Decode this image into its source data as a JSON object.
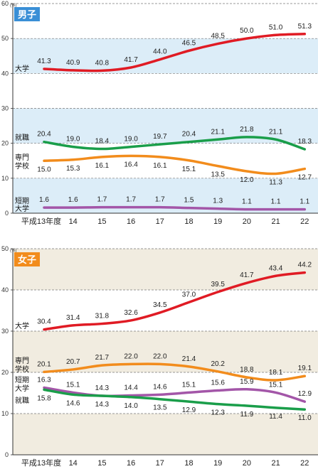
{
  "chart_data": [
    {
      "type": "line",
      "title": "男子",
      "title_color": "#3a8fd6",
      "band_color": "#dcedf8",
      "unit": "(%)",
      "ylim": [
        0,
        60
      ],
      "yticks": [
        0,
        10,
        20,
        30,
        40,
        50,
        60
      ],
      "grid": true,
      "x": [
        "平成13年度",
        "14",
        "15",
        "16",
        "17",
        "18",
        "19",
        "20",
        "21",
        "22"
      ],
      "series": [
        {
          "name": "大学",
          "label_lines": [
            "大学"
          ],
          "color": "#e01b24",
          "label_value": 41.3,
          "values": [
            41.3,
            40.9,
            40.8,
            41.7,
            44.0,
            46.5,
            48.5,
            50.0,
            51.0,
            51.3
          ]
        },
        {
          "name": "就職",
          "label_lines": [
            "就職"
          ],
          "color": "#1a9e4a",
          "label_value": 20.4,
          "values": [
            20.4,
            19.0,
            18.4,
            19.0,
            19.7,
            20.4,
            21.1,
            21.8,
            21.1,
            18.3
          ]
        },
        {
          "name": "専門学校",
          "label_lines": [
            "専門",
            "学校"
          ],
          "color": "#f28c1c",
          "label_value": 15.0,
          "values": [
            15.0,
            15.3,
            16.1,
            16.4,
            16.1,
            15.1,
            13.5,
            12.0,
            11.3,
            12.7
          ]
        },
        {
          "name": "短期大学",
          "label_lines": [
            "短期",
            "大学"
          ],
          "color": "#a356a8",
          "label_value": 1.6,
          "values": [
            1.6,
            1.6,
            1.7,
            1.7,
            1.7,
            1.5,
            1.3,
            1.1,
            1.1,
            1.1
          ]
        }
      ]
    },
    {
      "type": "line",
      "title": "女子",
      "title_color": "#f28c1c",
      "band_color": "#f1ece0",
      "unit": "(%)",
      "ylim": [
        0,
        50
      ],
      "yticks": [
        0,
        10,
        20,
        30,
        40,
        50
      ],
      "grid": true,
      "x": [
        "平成13年度",
        "14",
        "15",
        "16",
        "17",
        "18",
        "19",
        "20",
        "21",
        "22"
      ],
      "series": [
        {
          "name": "大学",
          "label_lines": [
            "大学"
          ],
          "color": "#e01b24",
          "label_value": 30.4,
          "values": [
            30.4,
            31.4,
            31.8,
            32.6,
            34.5,
            37.0,
            39.5,
            41.7,
            43.4,
            44.2
          ]
        },
        {
          "name": "専門学校",
          "label_lines": [
            "専門",
            "学校"
          ],
          "color": "#f28c1c",
          "label_value": 20.1,
          "values": [
            20.1,
            20.7,
            21.7,
            22.0,
            22.0,
            21.4,
            20.2,
            18.8,
            18.1,
            19.1
          ]
        },
        {
          "name": "短期大学",
          "label_lines": [
            "短期",
            "大学"
          ],
          "color": "#a356a8",
          "label_value": 16.3,
          "values": [
            16.3,
            15.1,
            14.3,
            14.4,
            14.6,
            15.1,
            15.6,
            15.9,
            15.1,
            12.9
          ]
        },
        {
          "name": "就職",
          "label_lines": [
            "就職"
          ],
          "color": "#1a9e4a",
          "label_value": 15.8,
          "values": [
            15.8,
            14.6,
            14.3,
            14.0,
            13.5,
            12.9,
            12.3,
            11.9,
            11.4,
            11.0
          ]
        }
      ]
    }
  ]
}
